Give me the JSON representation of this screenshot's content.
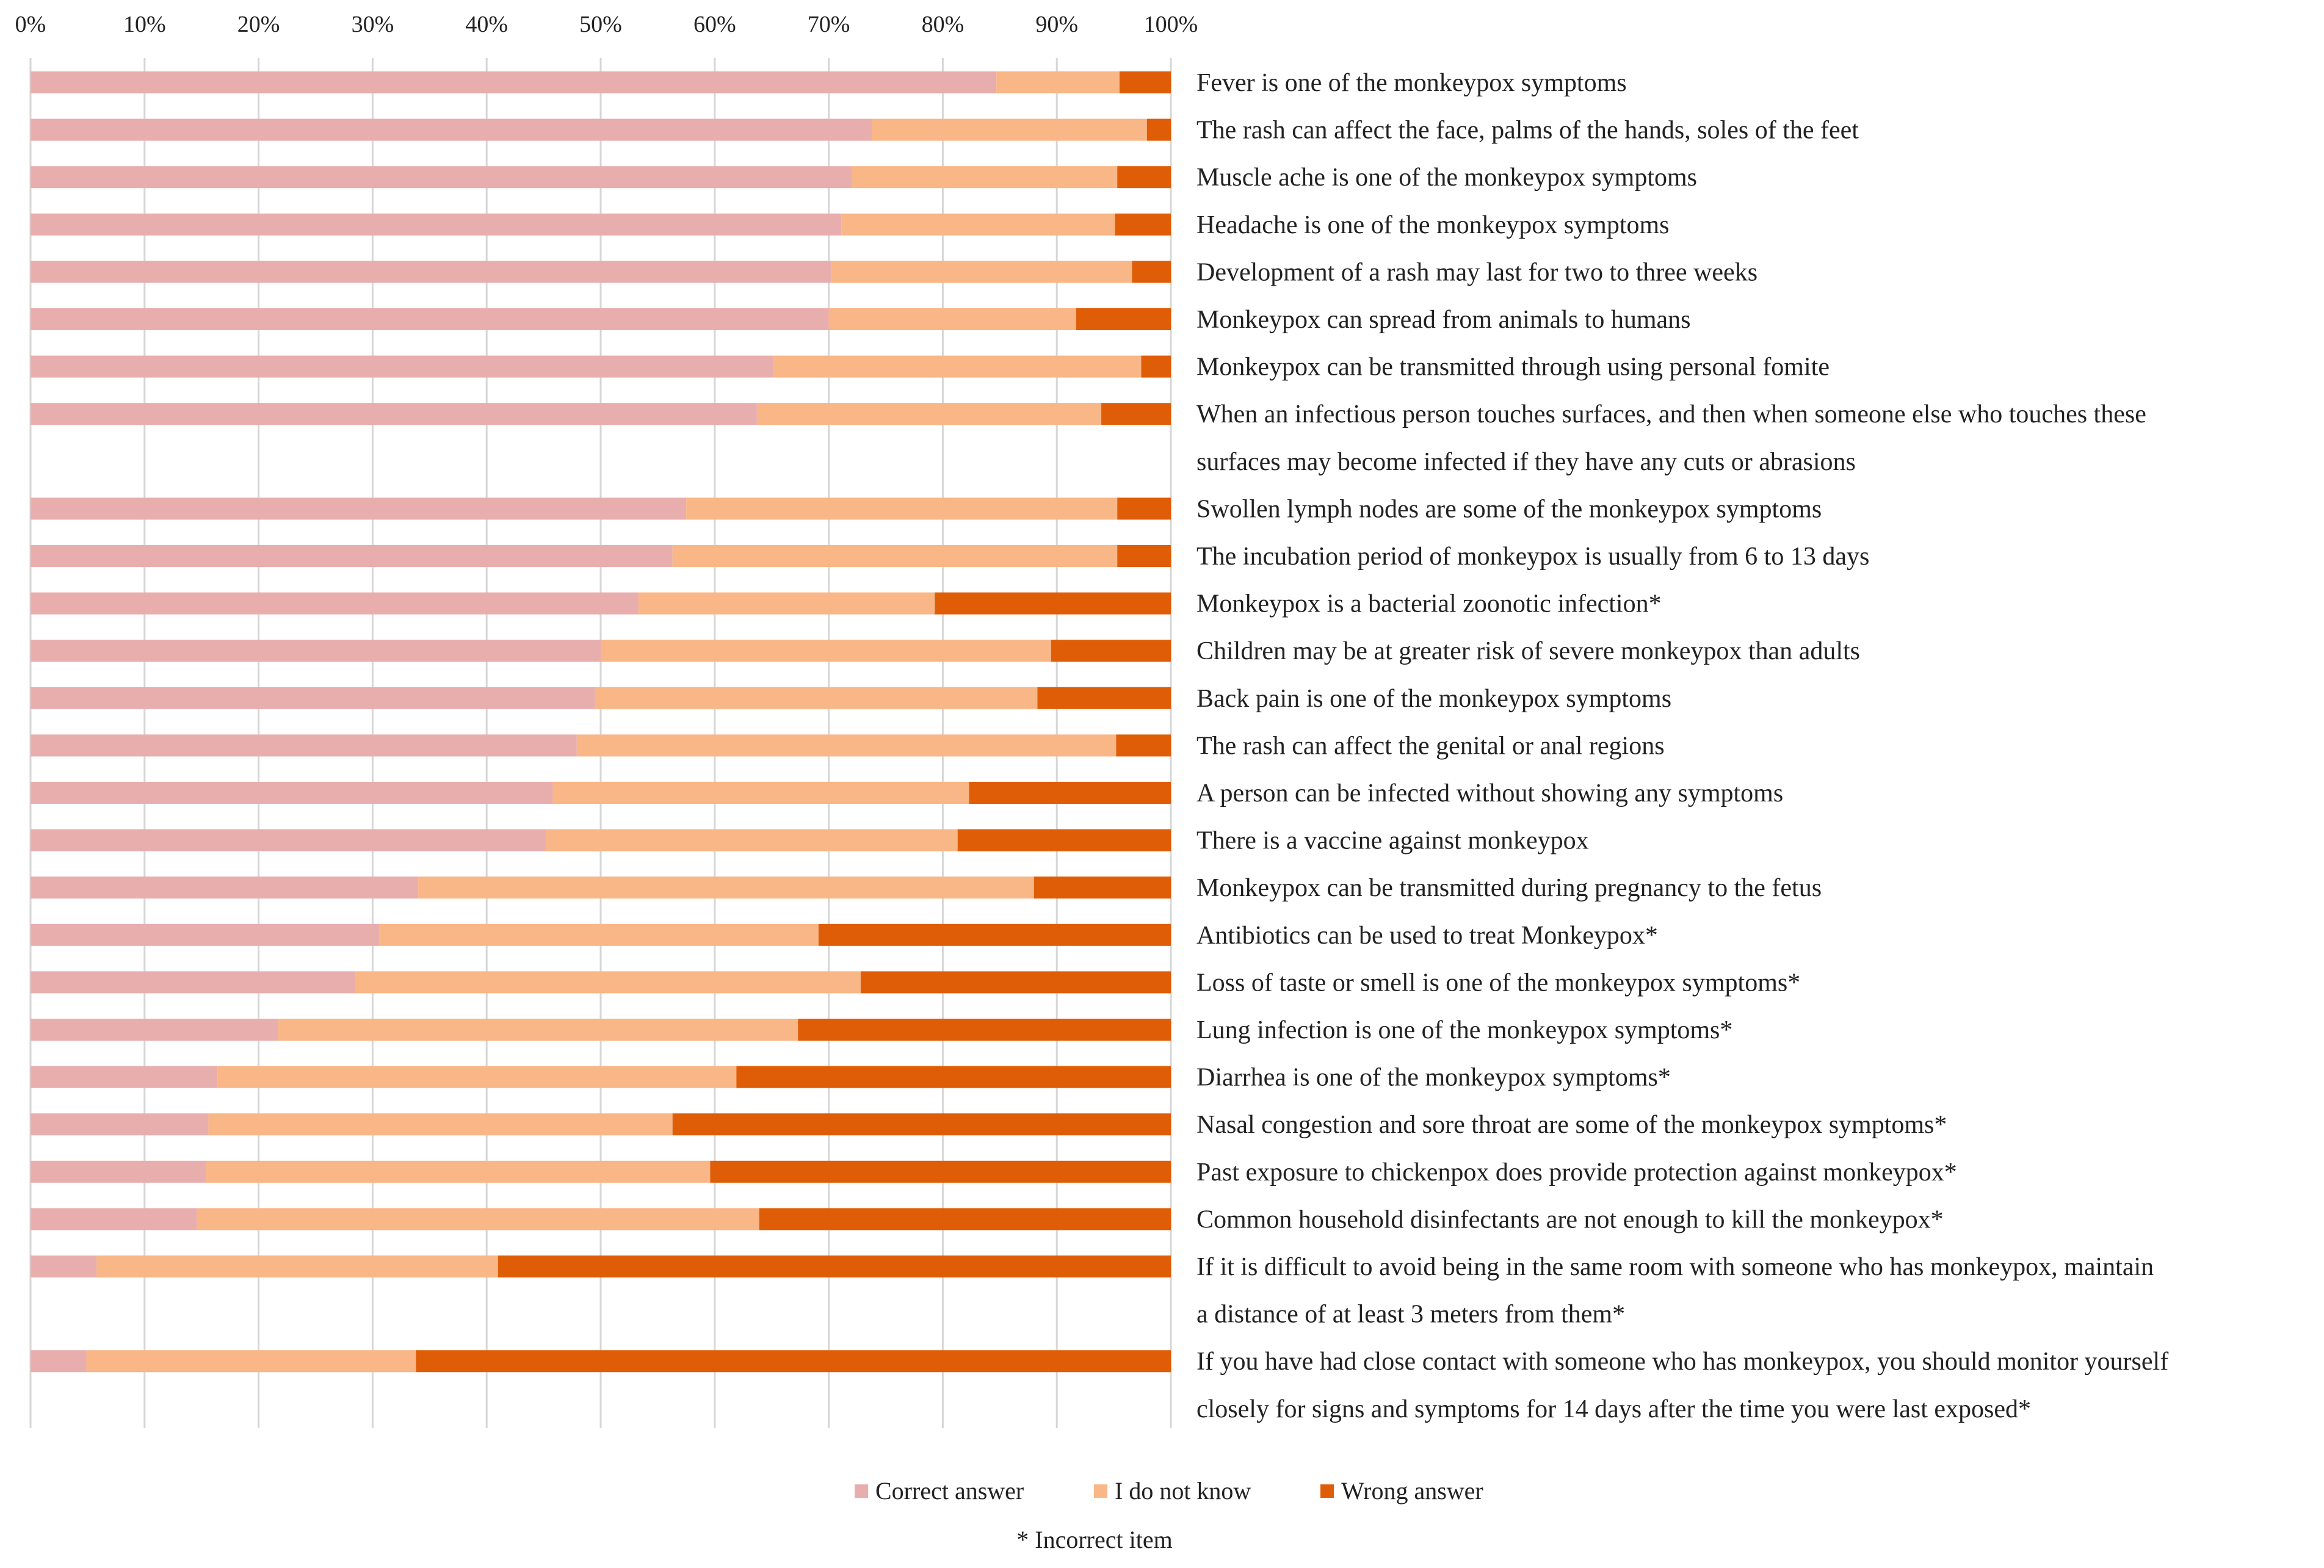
{
  "chart_data": {
    "type": "bar",
    "orientation": "horizontal",
    "stacked": "100%",
    "title": "",
    "xlabel": "",
    "ylabel": "",
    "xlim": [
      0,
      100
    ],
    "x_ticks": [
      "0%",
      "10%",
      "20%",
      "30%",
      "40%",
      "50%",
      "60%",
      "70%",
      "80%",
      "90%",
      "100%"
    ],
    "grid": true,
    "legend_position": "bottom",
    "categories": [
      [
        "Fever is one of the monkeypox symptoms"
      ],
      [
        "The rash can affect the face, palms of the hands, soles of the feet"
      ],
      [
        "Muscle ache is one of the monkeypox symptoms"
      ],
      [
        "Headache is one of the monkeypox symptoms"
      ],
      [
        "Development of a rash may last for two to three weeks"
      ],
      [
        "Monkeypox can spread from animals to humans"
      ],
      [
        "Monkeypox can be transmitted through using personal fomite"
      ],
      [
        "When an infectious person touches surfaces, and then when someone else who touches these",
        "surfaces may become infected if they have any cuts or abrasions"
      ],
      [
        "Swollen lymph nodes are some of the monkeypox symptoms"
      ],
      [
        "The incubation period of monkeypox is usually from 6 to 13 days"
      ],
      [
        "Monkeypox is a bacterial zoonotic infection*"
      ],
      [
        "Children may be at greater risk of severe monkeypox than adults"
      ],
      [
        "Back pain is one of the monkeypox symptoms"
      ],
      [
        "The rash can affect the genital or anal regions"
      ],
      [
        "A person can be infected without showing any symptoms"
      ],
      [
        "There is a vaccine against monkeypox"
      ],
      [
        "Monkeypox can be transmitted during pregnancy to the fetus"
      ],
      [
        "Antibiotics can be used to treat Monkeypox*"
      ],
      [
        "Loss of taste or smell is one of the monkeypox symptoms*"
      ],
      [
        "Lung infection is one of the monkeypox symptoms*"
      ],
      [
        "Diarrhea is one of the monkeypox symptoms*"
      ],
      [
        "Nasal congestion and sore throat are some of the monkeypox symptoms*"
      ],
      [
        "Past exposure to chickenpox does provide protection against monkeypox*"
      ],
      [
        "Common household disinfectants are not enough to kill the monkeypox*"
      ],
      [
        "If it is difficult to avoid being in the same room with someone who has monkeypox, maintain",
        "a distance of at least 3 meters from them*"
      ],
      [
        "If you have had close contact with someone who has monkeypox, you should monitor yourself",
        "closely for signs and symptoms for 14 days after the time you were last exposed*"
      ]
    ],
    "series": [
      {
        "name": "Correct answer",
        "color": "#e8aeae",
        "values": [
          84.7,
          73.8,
          72.0,
          71.1,
          70.2,
          70.0,
          65.1,
          63.7,
          57.5,
          56.3,
          53.3,
          50.0,
          49.5,
          47.9,
          45.8,
          45.2,
          34.0,
          30.6,
          28.5,
          21.7,
          16.4,
          15.6,
          15.4,
          14.6,
          5.8,
          4.9
        ]
      },
      {
        "name": "I do not know",
        "color": "#f9b686",
        "values": [
          10.8,
          24.1,
          23.3,
          24.0,
          26.4,
          21.7,
          32.3,
          30.2,
          37.8,
          39.0,
          26.0,
          39.5,
          38.8,
          47.3,
          36.5,
          36.1,
          54.0,
          38.5,
          44.3,
          45.6,
          45.5,
          40.7,
          44.2,
          49.3,
          35.2,
          28.9
        ]
      },
      {
        "name": "Wrong answer",
        "color": "#e05d08",
        "values": [
          4.5,
          2.1,
          4.7,
          4.9,
          3.4,
          8.3,
          2.6,
          6.1,
          4.7,
          4.7,
          20.7,
          10.5,
          11.7,
          4.8,
          17.7,
          18.7,
          12.0,
          30.9,
          27.2,
          32.7,
          38.1,
          43.7,
          40.4,
          36.1,
          59.0,
          66.2
        ]
      }
    ],
    "legend": [
      "Correct answer",
      "I do not know",
      "Wrong answer"
    ],
    "footnote": "* Incorrect item"
  }
}
